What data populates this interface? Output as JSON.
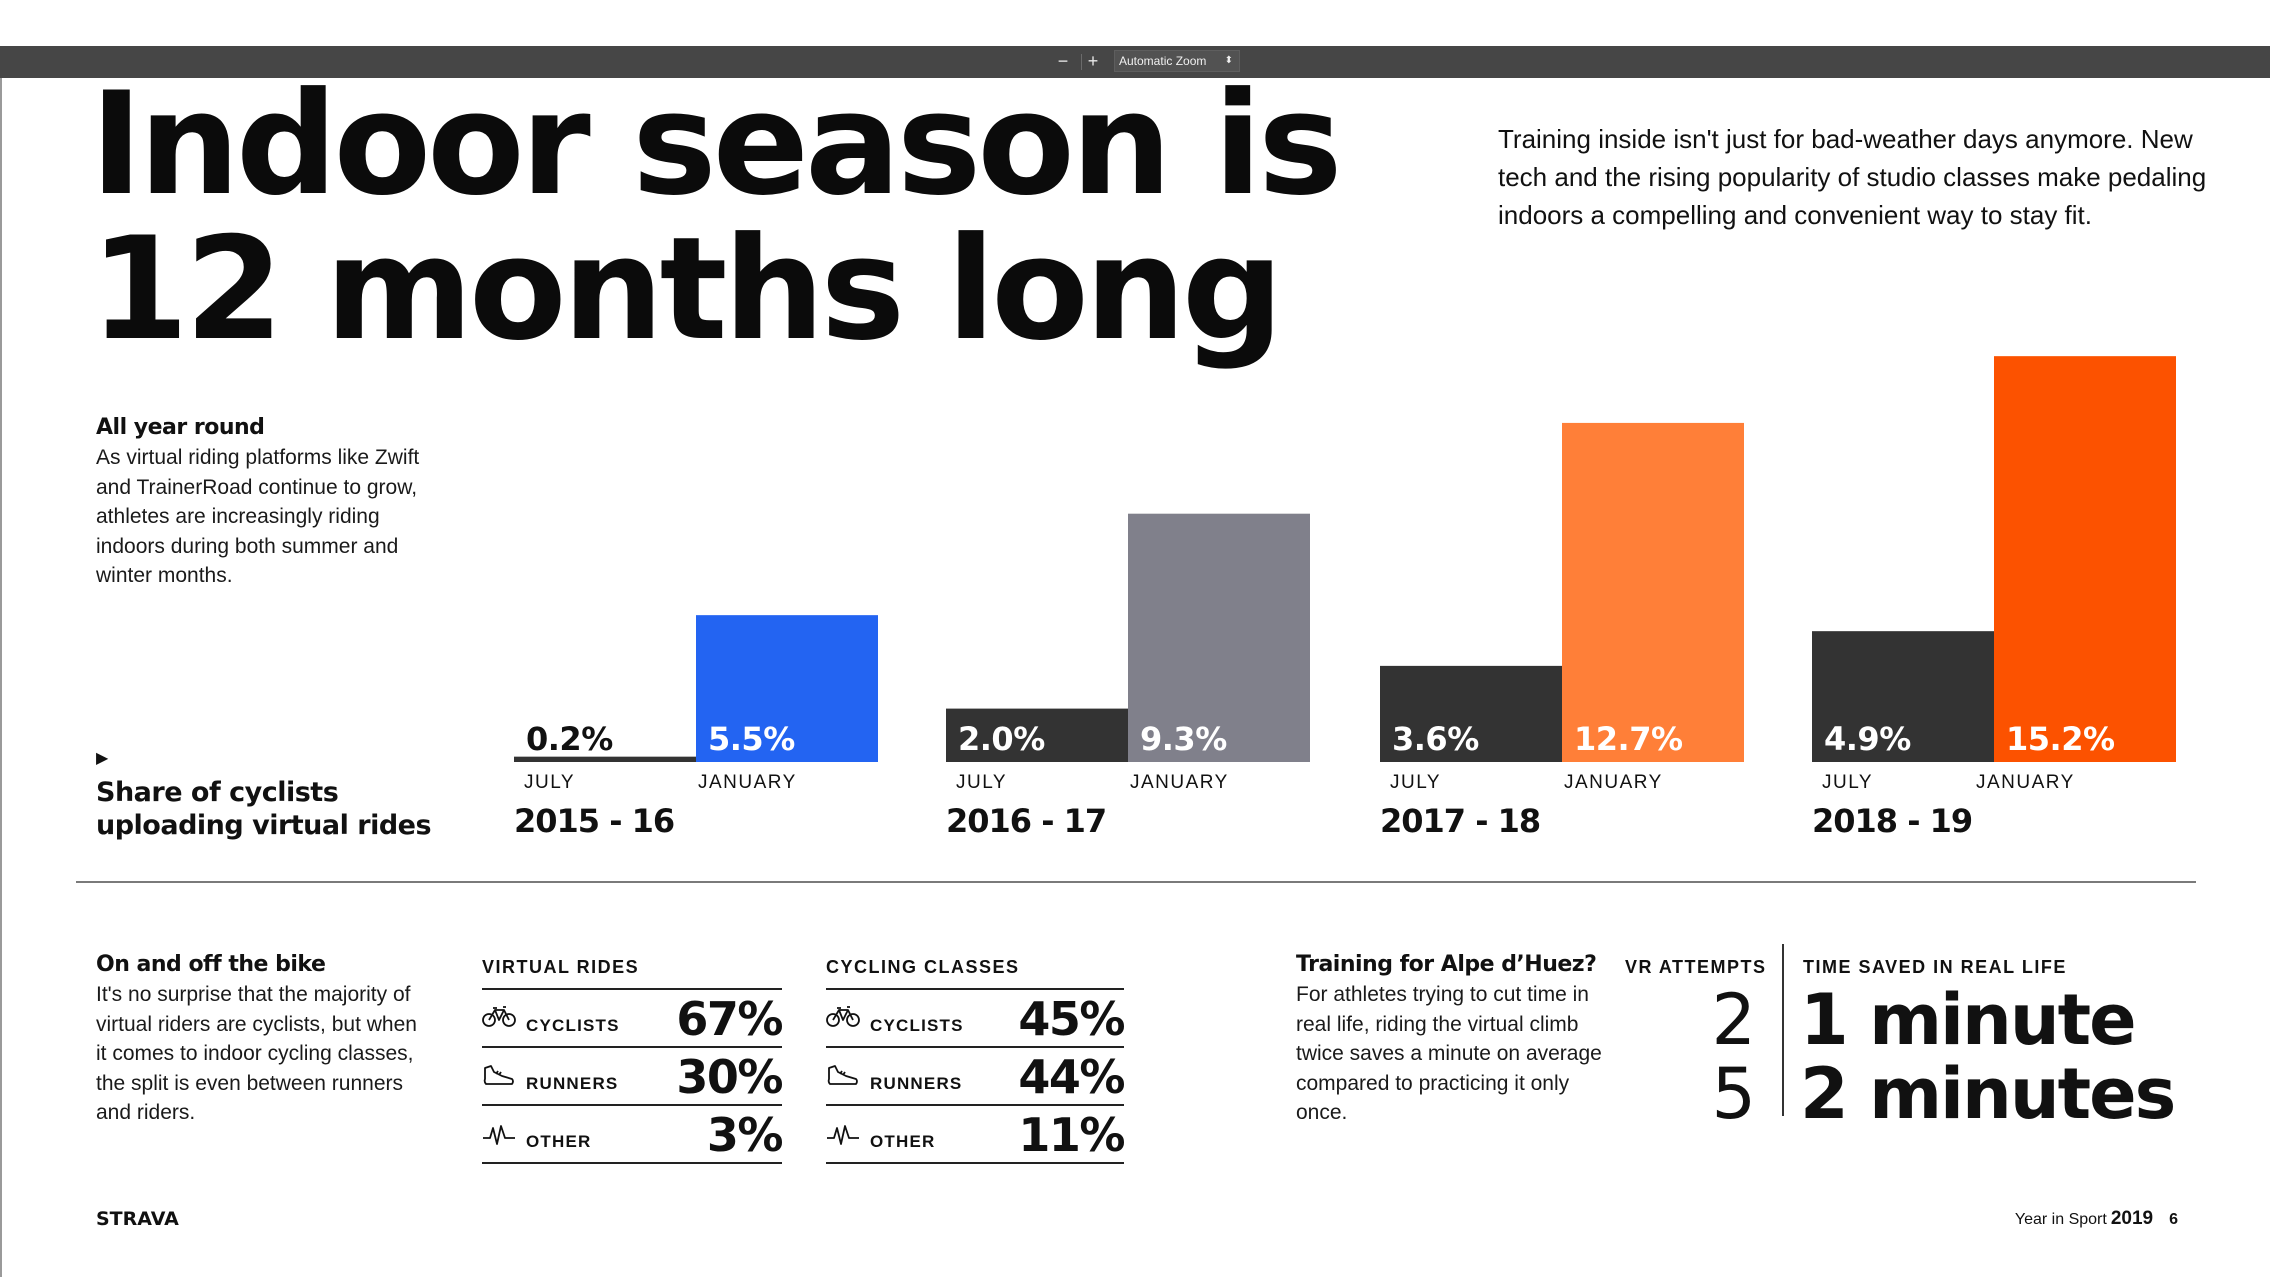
{
  "toolbar": {
    "zoom_out": "−",
    "zoom_in": "+",
    "zoom_select": "Automatic Zoom"
  },
  "headline": {
    "line1": "Indoor season is",
    "line2": "12 months long"
  },
  "intro": "Training inside isn't just for bad-weather days anymore. New tech and the rising popularity of studio classes make pedaling indoors a compelling and convenient way to stay fit.",
  "all_year": {
    "heading": "All year round",
    "body": "As virtual riding platforms like Zwift and TrainerRoad continue to grow, athletes are increasingly riding indoors during both summer and winter months."
  },
  "share_label": {
    "line1": "Share of cyclists",
    "line2": "uploading virtual rides"
  },
  "colors": {
    "dark": "#333333",
    "blue": "#2364f2",
    "gray": "#80808b",
    "orange_light": "#ff7f38",
    "orange": "#fc5200"
  },
  "chart_data": {
    "type": "bar",
    "series_labels": [
      "JULY",
      "JANUARY"
    ],
    "seasons": [
      {
        "season": "2015 - 16",
        "july": 0.2,
        "january": 5.5,
        "july_label": "0.2%",
        "january_label": "5.5%",
        "january_color": "#2364f2"
      },
      {
        "season": "2016 - 17",
        "july": 2.0,
        "january": 9.3,
        "july_label": "2.0%",
        "january_label": "9.3%",
        "january_color": "#80808b"
      },
      {
        "season": "2017 - 18",
        "july": 3.6,
        "january": 12.7,
        "july_label": "3.6%",
        "january_label": "12.7%",
        "january_color": "#ff7f38"
      },
      {
        "season": "2018 - 19",
        "july": 4.9,
        "january": 15.2,
        "july_label": "4.9%",
        "january_label": "15.2%",
        "january_color": "#fc5200"
      }
    ]
  },
  "on_off": {
    "heading": "On and off the bike",
    "body": "It's no surprise that the majority of virtual riders are cyclists, but when it comes to indoor cycling classes, the split is even between runners and riders."
  },
  "virtual_rides": {
    "title": "VIRTUAL RIDES",
    "rows": [
      {
        "icon": "bike-icon",
        "label": "CYCLISTS",
        "value": "67%"
      },
      {
        "icon": "shoe-icon",
        "label": "RUNNERS",
        "value": "30%"
      },
      {
        "icon": "activity-icon",
        "label": "OTHER",
        "value": "3%"
      }
    ]
  },
  "cycling_classes": {
    "title": "CYCLING CLASSES",
    "rows": [
      {
        "icon": "bike-icon",
        "label": "CYCLISTS",
        "value": "45%"
      },
      {
        "icon": "shoe-icon",
        "label": "RUNNERS",
        "value": "44%"
      },
      {
        "icon": "activity-icon",
        "label": "OTHER",
        "value": "11%"
      }
    ]
  },
  "alpe": {
    "heading": "Training for Alpe d’Huez?",
    "body": "For athletes trying to cut time in real life, riding the virtual climb twice saves a minute on average compared to practicing it only once."
  },
  "vr_attempts": {
    "title": "VR ATTEMPTS",
    "values": [
      "2",
      "5"
    ]
  },
  "time_saved": {
    "title": "TIME SAVED IN REAL LIFE",
    "values": [
      "1 minute",
      "2 minutes"
    ]
  },
  "footer": {
    "logo": "STRAVA",
    "publication": "Year in Sport",
    "year": "2019",
    "page": "6"
  }
}
